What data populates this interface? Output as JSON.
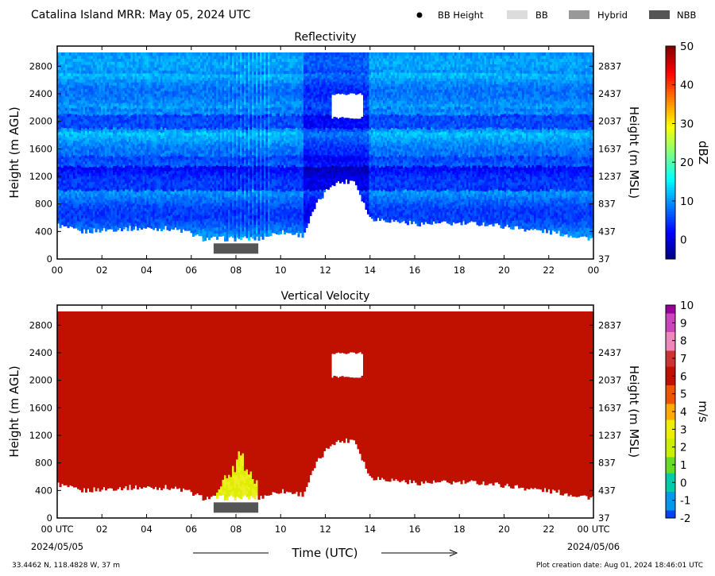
{
  "header": {
    "title": "Catalina Island MRR:  May 05, 2024 UTC",
    "legend": [
      {
        "label": "BB Height",
        "symbol": "dot",
        "color": "#000000"
      },
      {
        "label": "BB",
        "symbol": "swatch",
        "color": "#dcdcdc"
      },
      {
        "label": "Hybrid",
        "symbol": "swatch",
        "color": "#999999"
      },
      {
        "label": "NBB",
        "symbol": "swatch",
        "color": "#555555"
      }
    ]
  },
  "footer": {
    "location": "33.4462 N, 118.4828 W, 37 m",
    "creation": "Plot creation date: Aug 01, 2024 18:46:01 UTC",
    "start_date": "2024/05/05",
    "end_date": "2024/05/06",
    "xlabel": "Time (UTC)"
  },
  "chart_data": [
    {
      "type": "heatmap",
      "title": "Reflectivity",
      "ylabel": "Height (m AGL)",
      "ylabel_right": "Height (m MSL)",
      "xlim": [
        0,
        24
      ],
      "ylim": [
        0,
        3000
      ],
      "x_ticks": [
        "00",
        "02",
        "04",
        "06",
        "08",
        "10",
        "12",
        "14",
        "16",
        "18",
        "20",
        "22",
        "00"
      ],
      "y_ticks": [
        0,
        400,
        800,
        1200,
        1600,
        2000,
        2400,
        2800
      ],
      "y_ticks_right": [
        37,
        437,
        837,
        1237,
        1637,
        2037,
        2437,
        2837
      ],
      "colorbar": {
        "label": "dBZ",
        "range": [
          -5,
          50
        ],
        "ticks": [
          0,
          10,
          20,
          30,
          40,
          50
        ]
      },
      "echo_base_m": [
        {
          "t": 0,
          "h": 500
        },
        {
          "t": 1,
          "h": 400
        },
        {
          "t": 3,
          "h": 450
        },
        {
          "t": 5,
          "h": 450
        },
        {
          "t": 5.8,
          "h": 400
        },
        {
          "t": 6.5,
          "h": 300
        },
        {
          "t": 9,
          "h": 300
        },
        {
          "t": 10,
          "h": 400
        },
        {
          "t": 11,
          "h": 350
        },
        {
          "t": 11.6,
          "h": 800
        },
        {
          "t": 12.3,
          "h": 1100
        },
        {
          "t": 13.3,
          "h": 1150
        },
        {
          "t": 14,
          "h": 600
        },
        {
          "t": 16,
          "h": 520
        },
        {
          "t": 19,
          "h": 520
        },
        {
          "t": 22,
          "h": 400
        },
        {
          "t": 24,
          "h": 300
        }
      ],
      "gap_regions": [
        {
          "t0": 12.3,
          "t1": 13.7,
          "h0": 2050,
          "h1": 2400
        }
      ],
      "nbb_period_utc": [
        7,
        9
      ]
    },
    {
      "type": "heatmap",
      "title": "Vertical Velocity",
      "ylabel": "Height (m AGL)",
      "ylabel_right": "Height (m MSL)",
      "xlim": [
        0,
        24
      ],
      "ylim": [
        0,
        3000
      ],
      "x_ticks": [
        "00 UTC",
        "02",
        "04",
        "06",
        "08",
        "10",
        "12",
        "14",
        "16",
        "18",
        "20",
        "22",
        "00 UTC"
      ],
      "y_ticks": [
        0,
        400,
        800,
        1200,
        1600,
        2000,
        2400,
        2800
      ],
      "y_ticks_right": [
        37,
        437,
        837,
        1237,
        1637,
        2037,
        2437,
        2837
      ],
      "colorbar": {
        "label": "m/s",
        "range": [
          -2,
          10
        ],
        "ticks": [
          -2,
          -1,
          0,
          1,
          2,
          3,
          4,
          5,
          6,
          7,
          8,
          9,
          10
        ]
      },
      "dominant_value": 6,
      "high_velocity_region": {
        "t0": 7,
        "t1": 9,
        "h_max": 1050,
        "value_range": [
          2,
          3
        ]
      },
      "gap_regions": [
        {
          "t0": 12.3,
          "t1": 13.7,
          "h0": 2050,
          "h1": 2400
        }
      ],
      "nbb_period_utc": [
        7,
        9
      ]
    }
  ]
}
